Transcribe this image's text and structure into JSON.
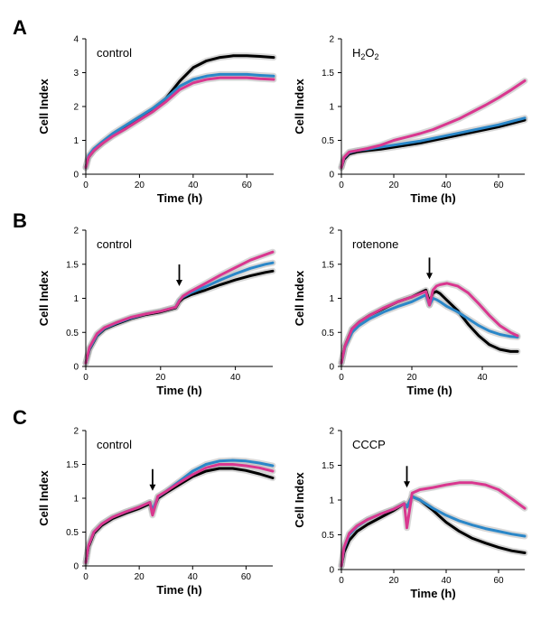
{
  "figure": {
    "panel_letters": [
      "A",
      "B",
      "C"
    ]
  },
  "colors": {
    "black": "#000000",
    "blue": "#2b87c8",
    "magenta": "#d9378f",
    "error": "#b8b8b8"
  },
  "chart_data": [
    {
      "type": "line",
      "panel": "A",
      "condition": "control",
      "title": "",
      "xlabel": "Time (h)",
      "ylabel": "Cell Index",
      "xlim": [
        0,
        70
      ],
      "ylim": [
        0,
        4
      ],
      "xticks": [
        0,
        20,
        40,
        60
      ],
      "yticks": [
        0,
        1,
        2,
        3,
        4
      ],
      "grid": false,
      "arrow_at": null,
      "series": [
        {
          "color": "black",
          "x": [
            0,
            1,
            3,
            6,
            10,
            15,
            20,
            25,
            30,
            35,
            40,
            45,
            50,
            55,
            60,
            65,
            70
          ],
          "y": [
            0.2,
            0.5,
            0.7,
            0.9,
            1.15,
            1.4,
            1.65,
            1.9,
            2.25,
            2.75,
            3.15,
            3.35,
            3.45,
            3.5,
            3.5,
            3.48,
            3.45
          ]
        },
        {
          "color": "blue",
          "x": [
            0,
            1,
            3,
            6,
            10,
            15,
            20,
            25,
            30,
            35,
            40,
            45,
            50,
            55,
            60,
            65,
            70
          ],
          "y": [
            0.2,
            0.55,
            0.75,
            0.95,
            1.2,
            1.45,
            1.7,
            1.95,
            2.25,
            2.6,
            2.8,
            2.9,
            2.95,
            2.95,
            2.95,
            2.92,
            2.9
          ]
        },
        {
          "color": "magenta",
          "x": [
            0,
            1,
            3,
            6,
            10,
            15,
            20,
            25,
            30,
            35,
            40,
            45,
            50,
            55,
            60,
            65,
            70
          ],
          "y": [
            0.2,
            0.5,
            0.7,
            0.9,
            1.12,
            1.35,
            1.6,
            1.85,
            2.15,
            2.5,
            2.7,
            2.8,
            2.85,
            2.85,
            2.85,
            2.82,
            2.8
          ]
        }
      ]
    },
    {
      "type": "line",
      "panel": "A",
      "condition": "H2O2",
      "title": "",
      "xlabel": "Time (h)",
      "ylabel": "Cell Index",
      "xlim": [
        0,
        70
      ],
      "ylim": [
        0,
        2
      ],
      "xticks": [
        0,
        20,
        40,
        60
      ],
      "yticks": [
        0,
        0.5,
        1,
        1.5,
        2
      ],
      "grid": false,
      "arrow_at": null,
      "series": [
        {
          "color": "black",
          "x": [
            0,
            1,
            3,
            6,
            10,
            15,
            20,
            25,
            30,
            35,
            40,
            45,
            50,
            55,
            60,
            65,
            70
          ],
          "y": [
            0.1,
            0.22,
            0.3,
            0.33,
            0.35,
            0.37,
            0.4,
            0.43,
            0.46,
            0.5,
            0.54,
            0.58,
            0.62,
            0.66,
            0.7,
            0.75,
            0.8
          ]
        },
        {
          "color": "blue",
          "x": [
            0,
            1,
            3,
            6,
            10,
            15,
            20,
            25,
            30,
            35,
            40,
            45,
            50,
            55,
            60,
            65,
            70
          ],
          "y": [
            0.1,
            0.24,
            0.32,
            0.35,
            0.37,
            0.4,
            0.43,
            0.46,
            0.49,
            0.53,
            0.57,
            0.61,
            0.65,
            0.69,
            0.73,
            0.78,
            0.83
          ]
        },
        {
          "color": "magenta",
          "x": [
            0,
            1,
            3,
            6,
            10,
            15,
            20,
            25,
            30,
            35,
            40,
            45,
            50,
            55,
            60,
            65,
            70
          ],
          "y": [
            0.1,
            0.25,
            0.33,
            0.35,
            0.38,
            0.43,
            0.5,
            0.55,
            0.6,
            0.66,
            0.74,
            0.82,
            0.92,
            1.02,
            1.13,
            1.25,
            1.38
          ]
        }
      ]
    },
    {
      "type": "line",
      "panel": "B",
      "condition": "control",
      "title": "",
      "xlabel": "Time (h)",
      "ylabel": "Cell Index",
      "xlim": [
        0,
        50
      ],
      "ylim": [
        0,
        2
      ],
      "xticks": [
        0,
        20,
        40
      ],
      "yticks": [
        0,
        0.5,
        1,
        1.5,
        2
      ],
      "grid": false,
      "arrow_at": 25,
      "series": [
        {
          "color": "black",
          "x": [
            0,
            1,
            3,
            5,
            8,
            12,
            16,
            20,
            24,
            25,
            26,
            28,
            32,
            36,
            40,
            44,
            48,
            50
          ],
          "y": [
            0.05,
            0.25,
            0.45,
            0.55,
            0.62,
            0.7,
            0.76,
            0.8,
            0.86,
            0.95,
            1.0,
            1.05,
            1.12,
            1.2,
            1.27,
            1.33,
            1.38,
            1.4
          ]
        },
        {
          "color": "blue",
          "x": [
            0,
            1,
            3,
            5,
            8,
            12,
            16,
            20,
            24,
            25,
            26,
            28,
            32,
            36,
            40,
            44,
            48,
            50
          ],
          "y": [
            0.05,
            0.26,
            0.46,
            0.56,
            0.63,
            0.71,
            0.77,
            0.81,
            0.87,
            0.97,
            1.02,
            1.08,
            1.17,
            1.27,
            1.36,
            1.44,
            1.5,
            1.52
          ]
        },
        {
          "color": "magenta",
          "x": [
            0,
            1,
            3,
            5,
            8,
            12,
            16,
            20,
            24,
            25,
            26,
            28,
            32,
            36,
            40,
            44,
            48,
            50
          ],
          "y": [
            0.05,
            0.28,
            0.48,
            0.57,
            0.64,
            0.72,
            0.77,
            0.81,
            0.87,
            0.96,
            1.03,
            1.1,
            1.22,
            1.34,
            1.45,
            1.56,
            1.64,
            1.68
          ]
        }
      ]
    },
    {
      "type": "line",
      "panel": "B",
      "condition": "rotenone",
      "title": "",
      "xlabel": "Time (h)",
      "ylabel": "Cell Index",
      "xlim": [
        0,
        50
      ],
      "ylim": [
        0,
        2
      ],
      "xticks": [
        0,
        20,
        40
      ],
      "yticks": [
        0,
        0.5,
        1,
        1.5,
        2
      ],
      "grid": false,
      "arrow_at": 25,
      "series": [
        {
          "color": "black",
          "x": [
            0,
            1,
            3,
            5,
            8,
            12,
            16,
            20,
            24,
            25,
            26,
            27,
            28,
            30,
            33,
            36,
            39,
            42,
            45,
            48,
            50
          ],
          "y": [
            0.05,
            0.3,
            0.55,
            0.65,
            0.75,
            0.85,
            0.95,
            1.02,
            1.12,
            0.95,
            1.08,
            1.1,
            1.07,
            0.97,
            0.82,
            0.62,
            0.45,
            0.32,
            0.25,
            0.22,
            0.22
          ]
        },
        {
          "color": "blue",
          "x": [
            0,
            1,
            3,
            5,
            8,
            12,
            16,
            20,
            24,
            25,
            26,
            27,
            28,
            30,
            33,
            36,
            39,
            42,
            45,
            48,
            50
          ],
          "y": [
            0.05,
            0.28,
            0.5,
            0.6,
            0.7,
            0.8,
            0.88,
            0.95,
            1.05,
            0.9,
            1.0,
            0.98,
            0.95,
            0.88,
            0.8,
            0.7,
            0.6,
            0.52,
            0.47,
            0.44,
            0.43
          ]
        },
        {
          "color": "magenta",
          "x": [
            0,
            1,
            3,
            5,
            8,
            12,
            16,
            20,
            24,
            25,
            26,
            27,
            28,
            30,
            33,
            36,
            39,
            42,
            45,
            48,
            50
          ],
          "y": [
            0.05,
            0.3,
            0.55,
            0.65,
            0.75,
            0.86,
            0.95,
            1.02,
            1.1,
            0.9,
            1.12,
            1.18,
            1.2,
            1.22,
            1.18,
            1.08,
            0.92,
            0.75,
            0.6,
            0.5,
            0.45
          ]
        }
      ]
    },
    {
      "type": "line",
      "panel": "C",
      "condition": "control",
      "title": "",
      "xlabel": "Time (h)",
      "ylabel": "Cell Index",
      "xlim": [
        0,
        70
      ],
      "ylim": [
        0,
        2
      ],
      "xticks": [
        0,
        20,
        40,
        60
      ],
      "yticks": [
        0,
        0.5,
        1,
        1.5,
        2
      ],
      "grid": false,
      "arrow_at": 25,
      "series": [
        {
          "color": "black",
          "x": [
            0,
            1,
            3,
            6,
            10,
            15,
            20,
            24,
            25,
            27,
            30,
            35,
            40,
            45,
            50,
            55,
            60,
            65,
            70
          ],
          "y": [
            0.05,
            0.28,
            0.48,
            0.6,
            0.7,
            0.78,
            0.85,
            0.92,
            0.8,
            1.0,
            1.08,
            1.2,
            1.32,
            1.4,
            1.44,
            1.44,
            1.41,
            1.36,
            1.3
          ]
        },
        {
          "color": "blue",
          "x": [
            0,
            1,
            3,
            6,
            10,
            15,
            20,
            24,
            25,
            27,
            30,
            35,
            40,
            45,
            50,
            55,
            60,
            65,
            70
          ],
          "y": [
            0.05,
            0.3,
            0.5,
            0.62,
            0.72,
            0.8,
            0.87,
            0.94,
            0.82,
            1.02,
            1.1,
            1.25,
            1.4,
            1.5,
            1.55,
            1.56,
            1.55,
            1.52,
            1.48
          ]
        },
        {
          "color": "magenta",
          "x": [
            0,
            1,
            3,
            6,
            10,
            15,
            20,
            24,
            25,
            27,
            30,
            35,
            40,
            45,
            50,
            55,
            60,
            65,
            70
          ],
          "y": [
            0.05,
            0.3,
            0.5,
            0.62,
            0.72,
            0.8,
            0.87,
            0.94,
            0.75,
            1.03,
            1.1,
            1.23,
            1.35,
            1.45,
            1.5,
            1.5,
            1.48,
            1.45,
            1.4
          ]
        }
      ]
    },
    {
      "type": "line",
      "panel": "C",
      "condition": "CCCP",
      "title": "",
      "xlabel": "Time (h)",
      "ylabel": "Cell Index",
      "xlim": [
        0,
        70
      ],
      "ylim": [
        0,
        2
      ],
      "xticks": [
        0,
        20,
        40,
        60
      ],
      "yticks": [
        0,
        0.5,
        1,
        1.5,
        2
      ],
      "grid": false,
      "arrow_at": 25,
      "series": [
        {
          "color": "black",
          "x": [
            0,
            1,
            3,
            6,
            10,
            15,
            20,
            24,
            25,
            27,
            30,
            35,
            40,
            45,
            50,
            55,
            60,
            65,
            70
          ],
          "y": [
            0.05,
            0.25,
            0.42,
            0.55,
            0.65,
            0.75,
            0.85,
            0.95,
            0.9,
            1.05,
            1.0,
            0.85,
            0.68,
            0.55,
            0.45,
            0.38,
            0.32,
            0.27,
            0.24
          ]
        },
        {
          "color": "blue",
          "x": [
            0,
            1,
            3,
            6,
            10,
            15,
            20,
            24,
            25,
            27,
            30,
            35,
            40,
            45,
            50,
            55,
            60,
            65,
            70
          ],
          "y": [
            0.05,
            0.3,
            0.5,
            0.62,
            0.72,
            0.8,
            0.87,
            0.95,
            0.9,
            1.05,
            1.0,
            0.88,
            0.78,
            0.7,
            0.64,
            0.59,
            0.55,
            0.51,
            0.48
          ]
        },
        {
          "color": "magenta",
          "x": [
            0,
            1,
            3,
            6,
            10,
            15,
            20,
            24,
            25,
            27,
            30,
            35,
            40,
            45,
            50,
            55,
            60,
            65,
            70
          ],
          "y": [
            0.05,
            0.32,
            0.52,
            0.63,
            0.72,
            0.8,
            0.87,
            0.95,
            0.6,
            1.1,
            1.15,
            1.18,
            1.22,
            1.25,
            1.25,
            1.22,
            1.15,
            1.02,
            0.88
          ]
        }
      ]
    }
  ]
}
